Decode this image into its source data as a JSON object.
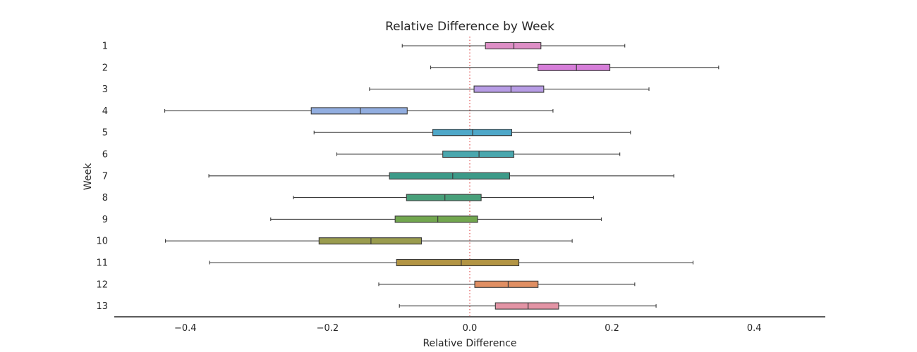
{
  "chart_data": {
    "type": "boxplot",
    "orientation": "horizontal",
    "title": "Relative Difference by Week",
    "xlabel": "Relative Difference",
    "ylabel": "Week",
    "xlim": [
      -0.5,
      0.5
    ],
    "xticks": [
      -0.4,
      -0.2,
      0.0,
      0.2,
      0.4
    ],
    "xtick_labels": [
      "−0.4",
      "−0.2",
      "0.0",
      "0.2",
      "0.4"
    ],
    "reference_line": {
      "x": 0.0,
      "color": "#e05050",
      "style": "dotted"
    },
    "grid": false,
    "categories": [
      "1",
      "2",
      "3",
      "4",
      "5",
      "6",
      "7",
      "8",
      "9",
      "10",
      "11",
      "12",
      "13"
    ],
    "boxes": [
      {
        "week": "1",
        "whislo": -0.095,
        "q1": 0.022,
        "med": 0.062,
        "q3": 0.1,
        "whishi": 0.218,
        "color": "#de8fc6"
      },
      {
        "week": "2",
        "whislo": -0.055,
        "q1": 0.096,
        "med": 0.15,
        "q3": 0.197,
        "whishi": 0.35,
        "color": "#d67ed9"
      },
      {
        "week": "3",
        "whislo": -0.141,
        "q1": 0.006,
        "med": 0.058,
        "q3": 0.104,
        "whishi": 0.252,
        "color": "#b79ce5"
      },
      {
        "week": "4",
        "whislo": -0.429,
        "q1": -0.223,
        "med": -0.154,
        "q3": -0.088,
        "whishi": 0.117,
        "color": "#92aee0"
      },
      {
        "week": "5",
        "whislo": -0.219,
        "q1": -0.052,
        "med": 0.004,
        "q3": 0.059,
        "whishi": 0.226,
        "color": "#4fa8c9"
      },
      {
        "week": "6",
        "whislo": -0.187,
        "q1": -0.038,
        "med": 0.013,
        "q3": 0.062,
        "whishi": 0.211,
        "color": "#4aa7ae"
      },
      {
        "week": "7",
        "whislo": -0.367,
        "q1": -0.113,
        "med": -0.024,
        "q3": 0.056,
        "whishi": 0.287,
        "color": "#3c9a88"
      },
      {
        "week": "8",
        "whislo": -0.248,
        "q1": -0.089,
        "med": -0.035,
        "q3": 0.016,
        "whishi": 0.174,
        "color": "#48a07a"
      },
      {
        "week": "9",
        "whislo": -0.28,
        "q1": -0.105,
        "med": -0.045,
        "q3": 0.011,
        "whishi": 0.185,
        "color": "#72a74f"
      },
      {
        "week": "10",
        "whislo": -0.428,
        "q1": -0.212,
        "med": -0.139,
        "q3": -0.068,
        "whishi": 0.144,
        "color": "#9a9c4e"
      },
      {
        "week": "11",
        "whislo": -0.366,
        "q1": -0.103,
        "med": -0.012,
        "q3": 0.069,
        "whishi": 0.314,
        "color": "#b39544"
      },
      {
        "week": "12",
        "whislo": -0.128,
        "q1": 0.007,
        "med": 0.054,
        "q3": 0.096,
        "whishi": 0.232,
        "color": "#e08f63"
      },
      {
        "week": "13",
        "whislo": -0.099,
        "q1": 0.036,
        "med": 0.082,
        "q3": 0.125,
        "whishi": 0.262,
        "color": "#e394a5"
      }
    ]
  }
}
